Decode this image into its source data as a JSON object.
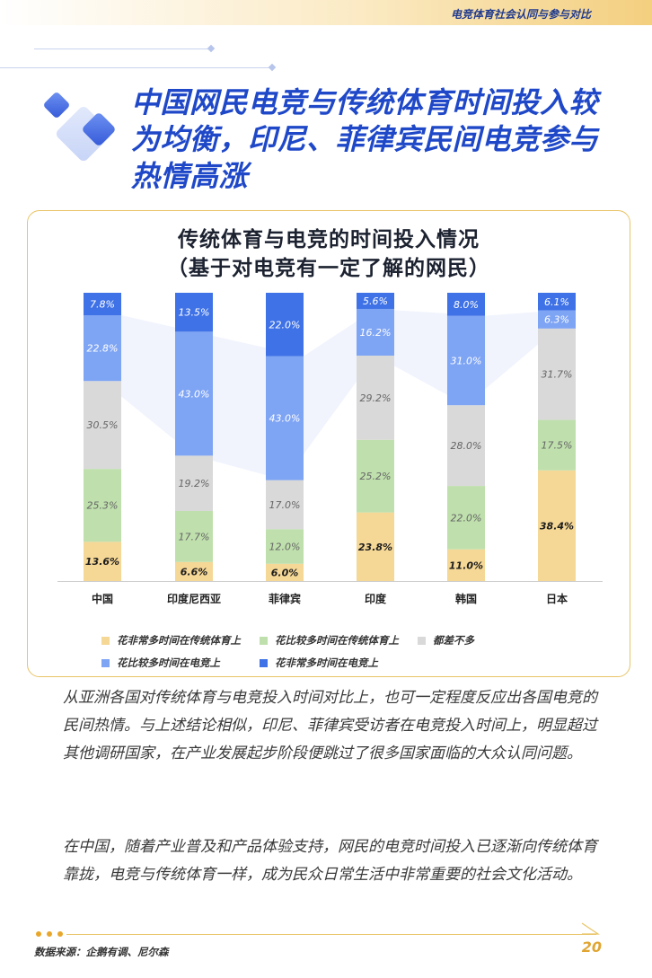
{
  "header": {
    "section_label": "电竞体育社会认同与参与对比"
  },
  "headline": {
    "lines": [
      "中国网民电竞与传统体育时间投入较",
      "为均衡，印尼、菲律宾民间电竞参与",
      "热情高涨"
    ]
  },
  "colors": {
    "accent_blue": "#1f48c8",
    "gold": "#e8a72a",
    "series": [
      "#f5d796",
      "#bfe0ad",
      "#d9d9d9",
      "#7ea4f4",
      "#3f72e6"
    ]
  },
  "chart_data": {
    "type": "bar",
    "stacked": true,
    "title_lines": [
      "传统体育与电竞的时间投入情况",
      "（基于对电竞有一定了解的网民）"
    ],
    "categories": [
      "中国",
      "印度尼西亚",
      "菲律宾",
      "印度",
      "韩国",
      "日本"
    ],
    "series": [
      {
        "name": "花非常多时间在传统体育上",
        "values": [
          13.6,
          6.6,
          6.0,
          23.8,
          11.0,
          38.4
        ]
      },
      {
        "name": "花比较多时间在传统体育上",
        "values": [
          25.3,
          17.7,
          12.0,
          25.2,
          22.0,
          17.5
        ]
      },
      {
        "name": "都差不多",
        "values": [
          30.5,
          19.2,
          17.0,
          29.2,
          28.0,
          31.7
        ]
      },
      {
        "name": "花比较多时间在电竞上",
        "values": [
          22.8,
          43.0,
          43.0,
          16.2,
          31.0,
          6.3
        ]
      },
      {
        "name": "花非常多时间在电竞上",
        "values": [
          7.8,
          13.5,
          22.0,
          5.6,
          8.0,
          6.1
        ]
      }
    ],
    "value_labels": [
      [
        "13.6%",
        "6.6%",
        "6.0%",
        "23.8%",
        "11.0%",
        "38.4%"
      ],
      [
        "25.3%",
        "17.7%",
        "12.0%",
        "25.2%",
        "22.0%",
        "17.5%"
      ],
      [
        "30.5%",
        "19.2%",
        "17.0%",
        "29.2%",
        "28.0%",
        "31.7%"
      ],
      [
        "22.8%",
        "43.0%",
        "43.0%",
        "16.2%",
        "31.0%",
        "6.3%"
      ],
      [
        "7.8%",
        "13.5%",
        "22.0%",
        "5.6%",
        "8.0%",
        "6.1%"
      ]
    ],
    "ylim": [
      0,
      100
    ],
    "legend_position": "bottom",
    "grid": false
  },
  "paragraphs": [
    "从亚洲各国对传统体育与电竞投入时间对比上，也可一定程度反应出各国电竞的民间热情。与上述结论相似，印尼、菲律宾受访者在电竞投入时间上，明显超过其他调研国家，在产业发展起步阶段便跳过了很多国家面临的大众认同问题。",
    "在中国，随着产业普及和产品体验支持，网民的电竞时间投入已逐渐向传统体育靠拢，电竞与传统体育一样，成为民众日常生活中非常重要的社会文化活动。"
  ],
  "footer": {
    "source": "数据来源：企鹅有调、尼尔森",
    "page_number": "20"
  }
}
